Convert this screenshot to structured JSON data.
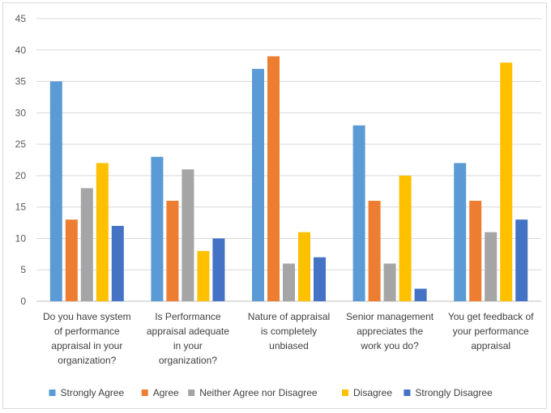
{
  "chart_data": {
    "type": "bar",
    "title": "",
    "xlabel": "",
    "ylabel": "",
    "ylim": [
      0,
      45
    ],
    "yticks": [
      0,
      5,
      10,
      15,
      20,
      25,
      30,
      35,
      40,
      45
    ],
    "grid": true,
    "legend_position": "bottom",
    "categories": [
      [
        "Do you have system",
        "of performance",
        "appraisal in your",
        "organization?"
      ],
      [
        "Is Performance",
        "appraisal adequate",
        "in your",
        "organization?"
      ],
      [
        "Nature of appraisal",
        "is completely",
        "unbiased"
      ],
      [
        "Senior management",
        "appreciates the",
        "work you do?"
      ],
      [
        "You get feedback of",
        "your performance",
        "appraisal"
      ]
    ],
    "series": [
      {
        "name": "Strongly Agree",
        "color": "#5b9bd5",
        "values": [
          35,
          23,
          37,
          28,
          22
        ]
      },
      {
        "name": "Agree",
        "color": "#ed7d31",
        "values": [
          13,
          16,
          39,
          16,
          16
        ]
      },
      {
        "name": "Neither Agree nor Disagree",
        "color": "#a5a5a5",
        "values": [
          18,
          21,
          6,
          6,
          11
        ]
      },
      {
        "name": "Disagree",
        "color": "#ffc000",
        "values": [
          22,
          8,
          11,
          20,
          38
        ]
      },
      {
        "name": "Strongly Disagree",
        "color": "#4472c4",
        "values": [
          12,
          10,
          7,
          2,
          13
        ]
      }
    ]
  }
}
